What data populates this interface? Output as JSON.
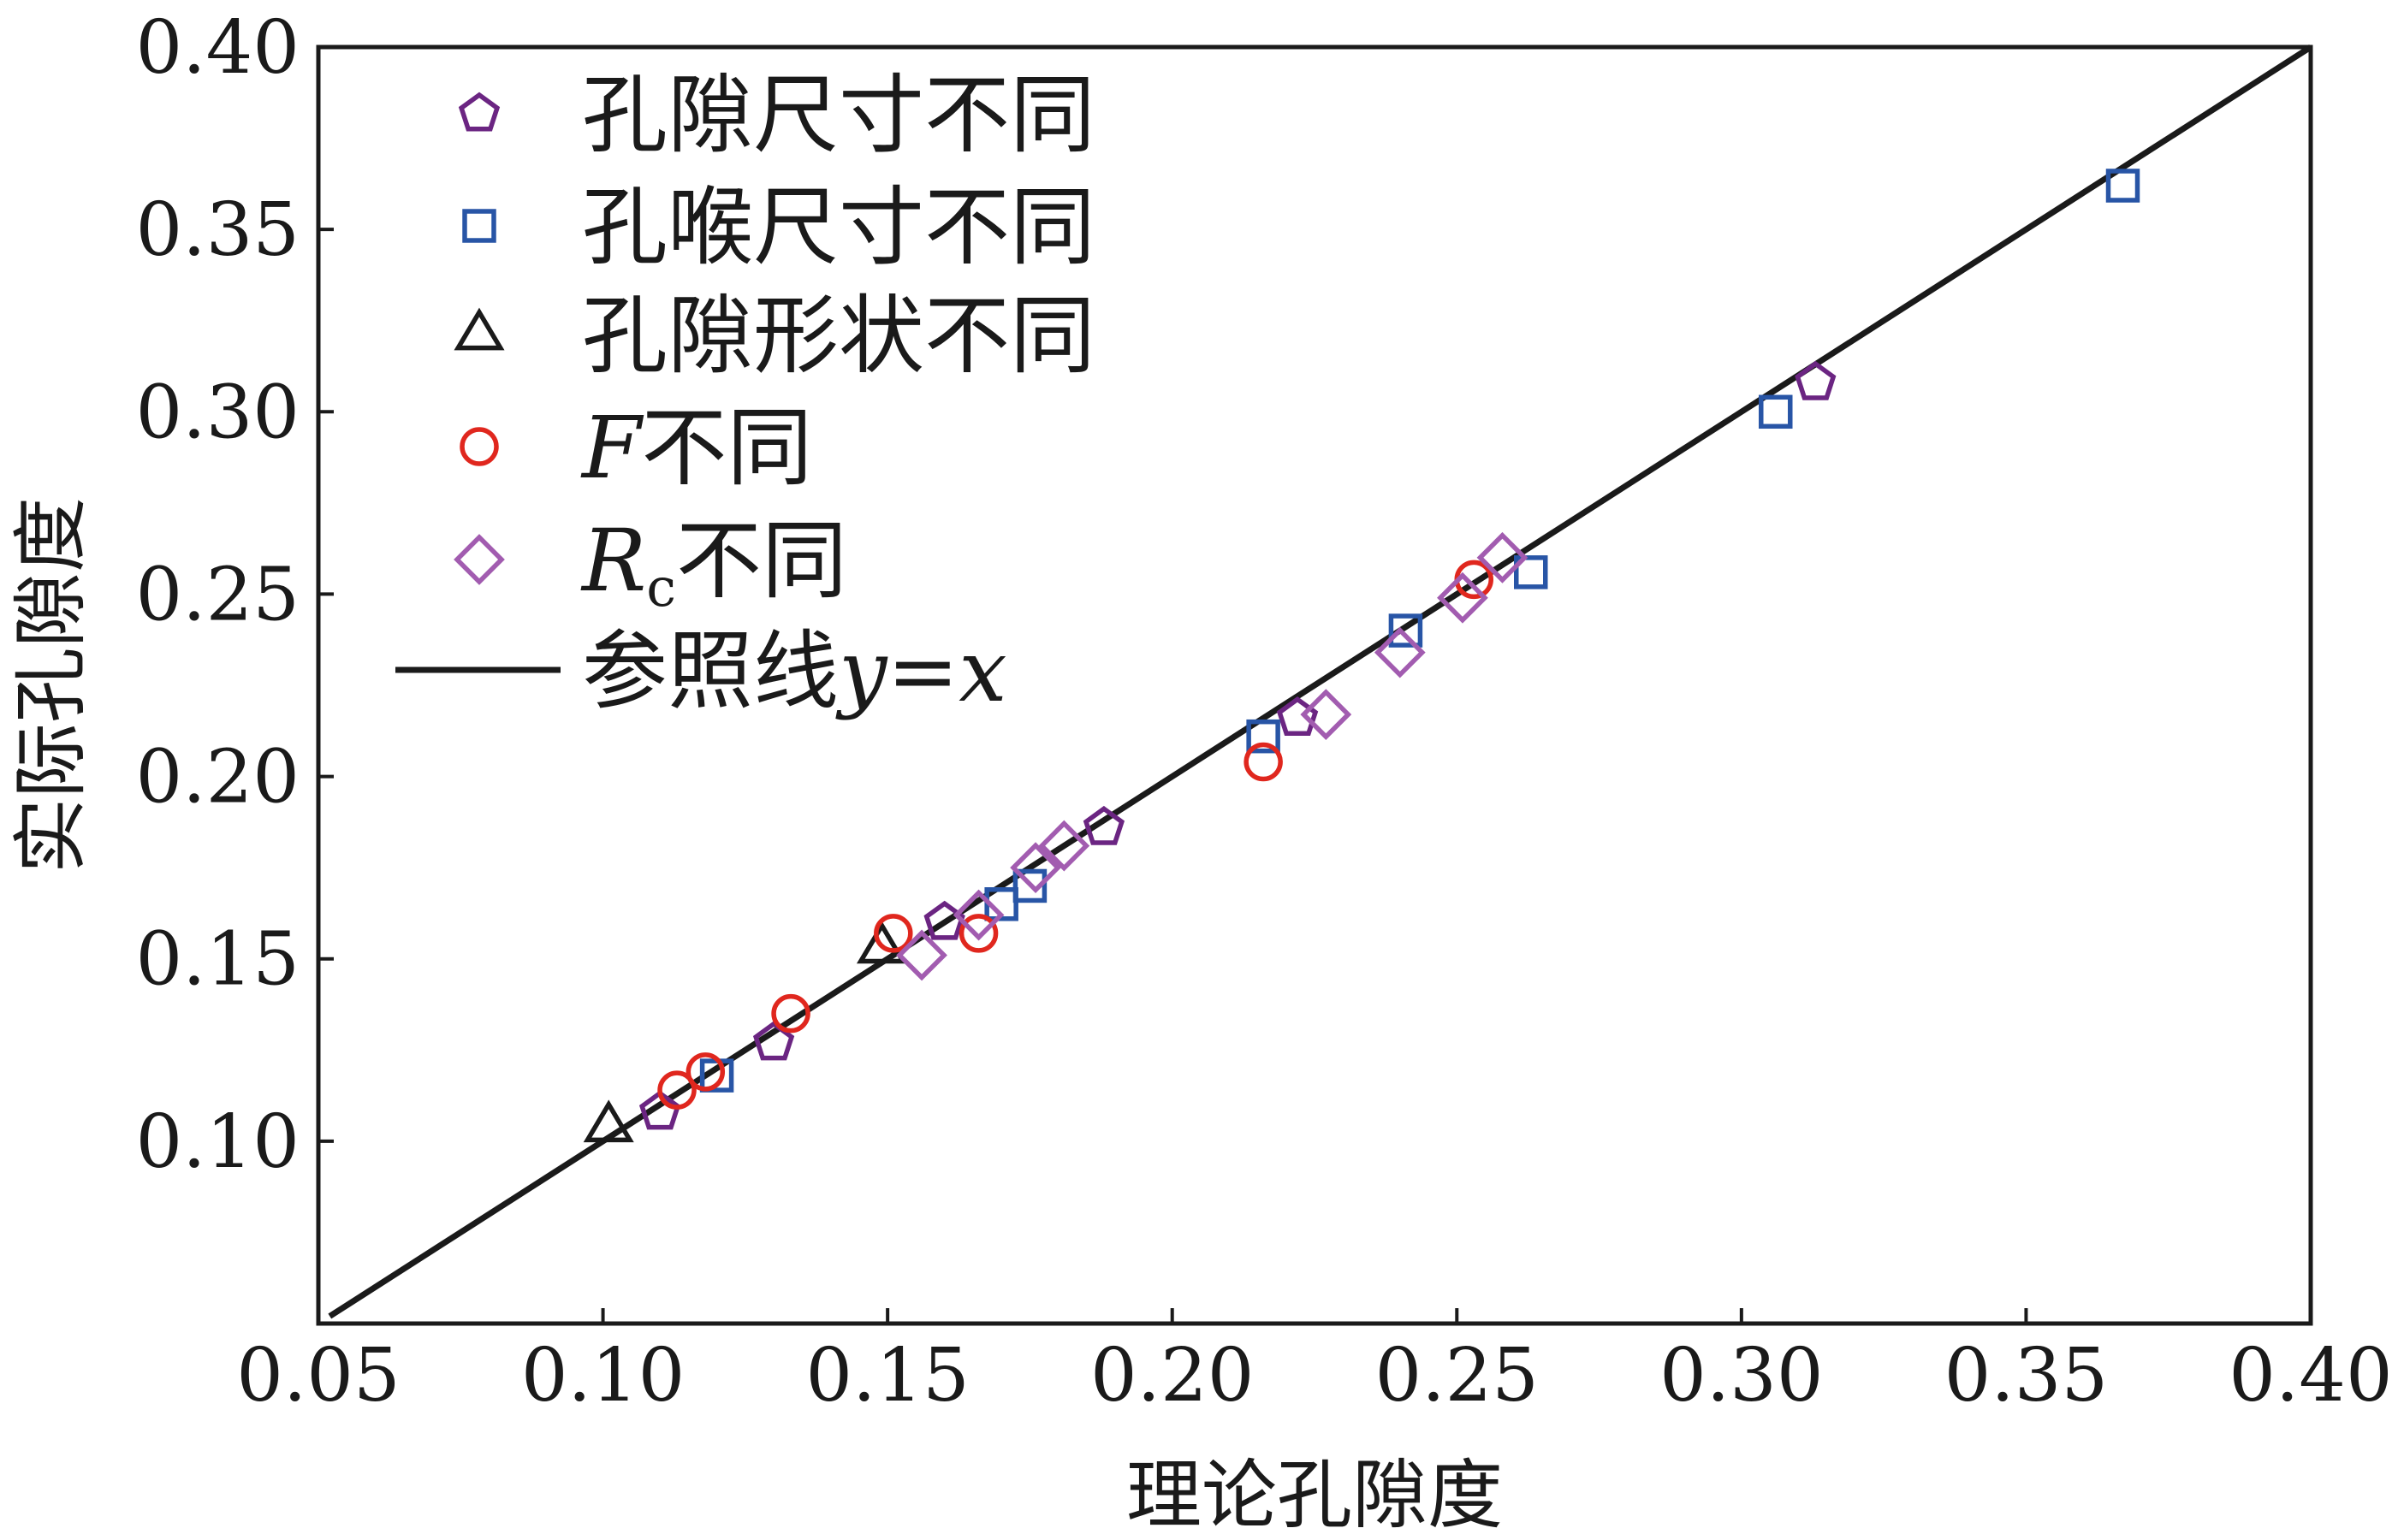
{
  "chart_data": {
    "type": "scatter",
    "xlabel": "理论孔隙度",
    "ylabel": "实际孔隙度",
    "xlim": [
      0.05,
      0.4
    ],
    "ylim": [
      0.05,
      0.4
    ],
    "x_ticks": [
      "0.05",
      "0.10",
      "0.15",
      "0.20",
      "0.25",
      "0.30",
      "0.35",
      "0.40"
    ],
    "y_ticks": [
      "0.10",
      "0.15",
      "0.20",
      "0.25",
      "0.30",
      "0.35",
      "0.40"
    ],
    "grid": false,
    "legend_position": "top-left",
    "series": [
      {
        "name": "孔隙尺寸不同",
        "marker": "pentagon",
        "color": "#6b2582",
        "points": [
          {
            "x": 0.11,
            "y": 0.108
          },
          {
            "x": 0.13,
            "y": 0.127
          },
          {
            "x": 0.16,
            "y": 0.16
          },
          {
            "x": 0.188,
            "y": 0.186
          },
          {
            "x": 0.222,
            "y": 0.216
          },
          {
            "x": 0.313,
            "y": 0.308
          }
        ]
      },
      {
        "name": "孔喉尺寸不同",
        "marker": "square",
        "color": "#2855a6",
        "points": [
          {
            "x": 0.12,
            "y": 0.118
          },
          {
            "x": 0.17,
            "y": 0.165
          },
          {
            "x": 0.175,
            "y": 0.17
          },
          {
            "x": 0.216,
            "y": 0.211
          },
          {
            "x": 0.241,
            "y": 0.24
          },
          {
            "x": 0.263,
            "y": 0.256
          },
          {
            "x": 0.306,
            "y": 0.3
          },
          {
            "x": 0.367,
            "y": 0.362
          }
        ]
      },
      {
        "name": "孔隙形状不同",
        "marker": "triangle",
        "color": "#1a1a1a",
        "points": [
          {
            "x": 0.101,
            "y": 0.104
          },
          {
            "x": 0.149,
            "y": 0.153
          }
        ]
      },
      {
        "name": "F不同",
        "name_main": "F",
        "name_rest": "不同",
        "marker": "circle",
        "color": "#e0271e",
        "points": [
          {
            "x": 0.113,
            "y": 0.114
          },
          {
            "x": 0.118,
            "y": 0.119
          },
          {
            "x": 0.133,
            "y": 0.135
          },
          {
            "x": 0.151,
            "y": 0.157
          },
          {
            "x": 0.166,
            "y": 0.157
          },
          {
            "x": 0.216,
            "y": 0.204
          },
          {
            "x": 0.253,
            "y": 0.254
          }
        ]
      },
      {
        "name": "Rc不同",
        "name_main": "R",
        "name_sub": "c",
        "name_rest": "不同",
        "marker": "diamond",
        "color": "#a25cb0",
        "points": [
          {
            "x": 0.156,
            "y": 0.151
          },
          {
            "x": 0.166,
            "y": 0.162
          },
          {
            "x": 0.176,
            "y": 0.175
          },
          {
            "x": 0.181,
            "y": 0.181
          },
          {
            "x": 0.227,
            "y": 0.217
          },
          {
            "x": 0.24,
            "y": 0.234
          },
          {
            "x": 0.251,
            "y": 0.249
          },
          {
            "x": 0.258,
            "y": 0.26
          }
        ]
      }
    ],
    "reference_line": {
      "name": "参照线y=x",
      "name_prefix": "参照线",
      "name_expr": "y=x",
      "color": "#1a1a1a",
      "from": [
        0.052,
        0.052
      ],
      "to": [
        0.4,
        0.4
      ]
    }
  }
}
